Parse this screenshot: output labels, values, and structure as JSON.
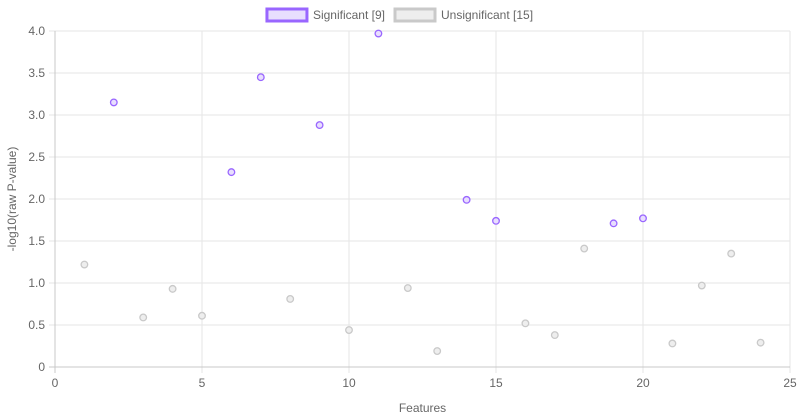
{
  "chart_data": {
    "type": "scatter",
    "title": "",
    "xlabel": "Features",
    "ylabel": "-log10(raw P-value)",
    "xlim": [
      0,
      25
    ],
    "ylim": [
      0,
      4.0
    ],
    "x_ticks": [
      0,
      5,
      10,
      15,
      20,
      25
    ],
    "y_ticks": [
      0,
      0.5,
      1.0,
      1.5,
      2.0,
      2.5,
      3.0,
      3.5,
      4.0
    ],
    "grid": true,
    "legend_position": "top",
    "series": [
      {
        "name": "Significant [9]",
        "color": "#9966ff",
        "fill": "#e8defe",
        "points": [
          {
            "x": 2,
            "y": 3.15
          },
          {
            "x": 6,
            "y": 2.32
          },
          {
            "x": 7,
            "y": 3.45
          },
          {
            "x": 9,
            "y": 2.88
          },
          {
            "x": 11,
            "y": 3.97
          },
          {
            "x": 14,
            "y": 1.99
          },
          {
            "x": 15,
            "y": 1.74
          },
          {
            "x": 19,
            "y": 1.71
          },
          {
            "x": 20,
            "y": 1.77
          }
        ]
      },
      {
        "name": "Unsignificant [15]",
        "color": "#c9c9c9",
        "fill": "#eeeeee",
        "points": [
          {
            "x": 1,
            "y": 1.22
          },
          {
            "x": 3,
            "y": 0.59
          },
          {
            "x": 4,
            "y": 0.93
          },
          {
            "x": 5,
            "y": 0.61
          },
          {
            "x": 8,
            "y": 0.81
          },
          {
            "x": 10,
            "y": 0.44
          },
          {
            "x": 12,
            "y": 0.94
          },
          {
            "x": 13,
            "y": 0.19
          },
          {
            "x": 16,
            "y": 0.52
          },
          {
            "x": 17,
            "y": 0.38
          },
          {
            "x": 18,
            "y": 1.41
          },
          {
            "x": 21,
            "y": 0.28
          },
          {
            "x": 22,
            "y": 0.97
          },
          {
            "x": 23,
            "y": 1.35
          },
          {
            "x": 24,
            "y": 0.29
          }
        ]
      }
    ]
  }
}
